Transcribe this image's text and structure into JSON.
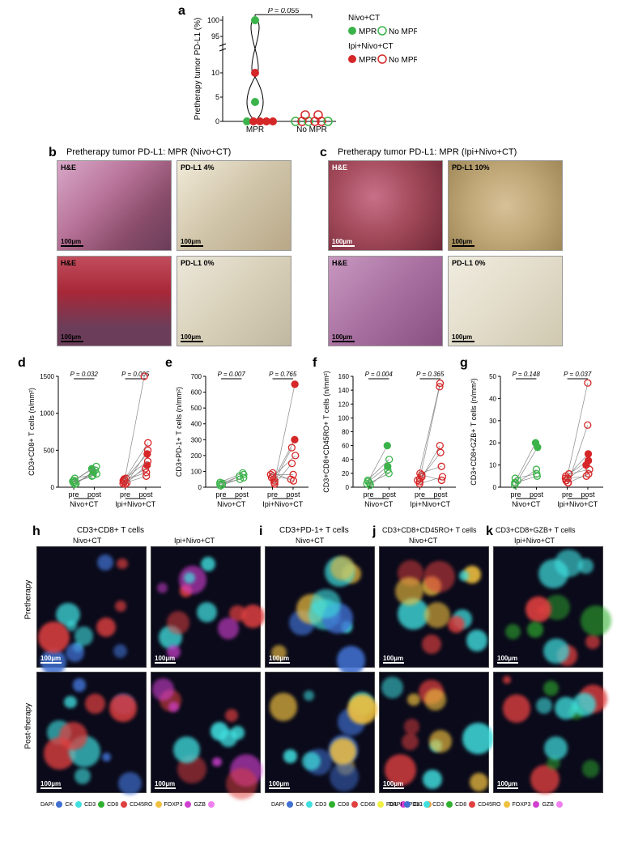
{
  "panel_a": {
    "label": "a",
    "type": "violin-scatter",
    "ylabel": "Pretherapy tumor PD-L1 (%)",
    "categories": [
      "MPR",
      "No MPR"
    ],
    "p_value": "P = 0.055",
    "legend": {
      "nivo": {
        "label": "Nivo+CT",
        "mpr": "MPR",
        "nompr": "No MPR",
        "color": "#3bb34a"
      },
      "ipi": {
        "label": "Ipi+Nivo+CT",
        "mpr": "MPR",
        "nompr": "No MPR",
        "color": "#d62728"
      }
    },
    "ylim": [
      0,
      100
    ],
    "yticks": [
      0,
      5,
      10,
      95,
      100
    ],
    "points_mpr": [
      {
        "y": 100,
        "fill": "#3bb34a",
        "stroke": "#3bb34a"
      },
      {
        "y": 10,
        "fill": "#d62728",
        "stroke": "#d62728"
      },
      {
        "y": 4,
        "fill": "#3bb34a",
        "stroke": "#3bb34a"
      },
      {
        "y": 0,
        "fill": "#3bb34a",
        "stroke": "#3bb34a"
      },
      {
        "y": 0,
        "fill": "#d62728",
        "stroke": "#d62728"
      },
      {
        "y": 0,
        "fill": "#d62728",
        "stroke": "#d62728"
      },
      {
        "y": 0,
        "fill": "#d62728",
        "stroke": "#d62728"
      },
      {
        "y": 0,
        "fill": "#d62728",
        "stroke": "#d62728"
      }
    ],
    "points_nompr": [
      {
        "y": 0,
        "fill": "none",
        "stroke": "#3bb34a"
      },
      {
        "y": 0,
        "fill": "none",
        "stroke": "#3bb34a"
      },
      {
        "y": 0,
        "fill": "none",
        "stroke": "#3bb34a"
      },
      {
        "y": 0,
        "fill": "none",
        "stroke": "#d62728"
      },
      {
        "y": 0,
        "fill": "none",
        "stroke": "#d62728"
      },
      {
        "y": 0,
        "fill": "none",
        "stroke": "#d62728"
      },
      {
        "y": 0,
        "fill": "none",
        "stroke": "#d62728"
      },
      {
        "y": 0,
        "fill": "none",
        "stroke": "#d62728"
      }
    ]
  },
  "panel_b": {
    "label": "b",
    "title": "Pretherapy tumor PD-L1: MPR (Nivo+CT)",
    "images": [
      {
        "label": "H&E",
        "bg": "linear-gradient(135deg,#d8a8c8,#b87399,#8a4d6a)"
      },
      {
        "label": "PD-L1 4%",
        "bg": "linear-gradient(135deg,#f0ead8,#e0d4b8,#c8bc98)"
      },
      {
        "label": "H&E",
        "bg": "linear-gradient(135deg,#c14d5d,#a82838,#6b3d5a)"
      },
      {
        "label": "PD-L1 0%",
        "bg": "linear-gradient(135deg,#ece7db,#dcd6c0,#c0b8a0)"
      }
    ],
    "scale": "100µm"
  },
  "panel_c": {
    "label": "c",
    "title": "Pretherapy tumor PD-L1: MPR (Ipi+Nivo+CT)",
    "images": [
      {
        "label": "H&E",
        "bg": "linear-gradient(135deg,#b05068,#903548,#6a2838)"
      },
      {
        "label": "PD-L1 10%",
        "bg": "linear-gradient(135deg,#e0d0b0,#c8b088,#a89068)"
      },
      {
        "label": "H&E",
        "bg": "linear-gradient(135deg,#c898c0,#a870a0,#885080)"
      },
      {
        "label": "PD-L1 0%",
        "bg": "linear-gradient(135deg,#f0ecdf,#e2dcca,#d0c8b0)"
      }
    ],
    "scale": "100µm"
  },
  "scatter_panels": {
    "colors": {
      "nivo": "#3bb34a",
      "ipi": "#d62728"
    },
    "x_labels": [
      "pre",
      "post",
      "pre",
      "post"
    ],
    "group_labels": [
      "Nivo+CT",
      "Ipi+Nivo+CT"
    ],
    "d": {
      "label": "d",
      "ylabel": "CD3+CD8+ T cells (n/mm²)",
      "ylim": [
        0,
        1500
      ],
      "yticks": [
        0,
        500,
        1000,
        1500
      ],
      "p_nivo": "P = 0.032",
      "p_ipi": "P = 0.005",
      "nivo_pairs": [
        [
          50,
          200
        ],
        [
          80,
          250
        ],
        [
          120,
          180
        ],
        [
          60,
          150
        ],
        [
          40,
          230
        ],
        [
          90,
          280
        ],
        [
          70,
          160
        ]
      ],
      "ipi_pairs": [
        [
          100,
          1500
        ],
        [
          80,
          600
        ],
        [
          60,
          500
        ],
        [
          120,
          450
        ],
        [
          40,
          300
        ],
        [
          70,
          250
        ],
        [
          90,
          200
        ],
        [
          50,
          150
        ],
        [
          110,
          350
        ]
      ],
      "mpr_nivo_post": [
        200,
        250
      ],
      "mpr_ipi_post": [
        450,
        300
      ]
    },
    "e": {
      "label": "e",
      "ylabel": "CD3+PD-1+ T cells (n/mm²)",
      "ylim": [
        0,
        700
      ],
      "yticks": [
        0,
        100,
        200,
        300,
        400,
        500,
        600,
        700
      ],
      "p_nivo": "P = 0.007",
      "p_ipi": "P = 0.765",
      "nivo_pairs": [
        [
          20,
          80
        ],
        [
          10,
          60
        ],
        [
          30,
          90
        ],
        [
          15,
          70
        ],
        [
          25,
          50
        ]
      ],
      "ipi_pairs": [
        [
          40,
          650
        ],
        [
          50,
          300
        ],
        [
          30,
          250
        ],
        [
          60,
          200
        ],
        [
          20,
          150
        ],
        [
          80,
          80
        ],
        [
          70,
          50
        ],
        [
          90,
          40
        ]
      ],
      "mpr_nivo_post": [],
      "mpr_ipi_post": [
        650,
        300
      ]
    },
    "f": {
      "label": "f",
      "ylabel": "CD3+CD8+CD45RO+ T cells (n/mm²)",
      "ylim": [
        0,
        160
      ],
      "yticks": [
        0,
        20,
        40,
        60,
        80,
        100,
        120,
        140,
        160
      ],
      "p_nivo": "P = 0.004",
      "p_ipi": "P = 0.365",
      "nivo_pairs": [
        [
          5,
          60
        ],
        [
          8,
          30
        ],
        [
          3,
          25
        ],
        [
          10,
          40
        ],
        [
          6,
          20
        ]
      ],
      "ipi_pairs": [
        [
          10,
          150
        ],
        [
          12,
          145
        ],
        [
          8,
          60
        ],
        [
          15,
          50
        ],
        [
          20,
          30
        ],
        [
          5,
          15
        ],
        [
          18,
          10
        ]
      ],
      "mpr_nivo_post": [
        60,
        30
      ],
      "mpr_ipi_post": []
    },
    "g": {
      "label": "g",
      "ylabel": "CD3+CD8+GZB+ T cells (n/mm²)",
      "ylim": [
        0,
        50
      ],
      "yticks": [
        0,
        10,
        20,
        30,
        40,
        50
      ],
      "p_nivo": "P = 0.148",
      "p_ipi": "P = 0.037",
      "nivo_pairs": [
        [
          2,
          20
        ],
        [
          3,
          18
        ],
        [
          1,
          8
        ],
        [
          4,
          6
        ],
        [
          2,
          5
        ]
      ],
      "ipi_pairs": [
        [
          3,
          47
        ],
        [
          2,
          28
        ],
        [
          4,
          15
        ],
        [
          5,
          12
        ],
        [
          3,
          10
        ],
        [
          6,
          8
        ],
        [
          2,
          6
        ],
        [
          4,
          5
        ]
      ],
      "mpr_nivo_post": [
        20,
        18
      ],
      "mpr_ipi_post": [
        15,
        12,
        10
      ]
    }
  },
  "fluor_panels": {
    "scale": "100µm",
    "row_labels": [
      "Pretherapy",
      "Post-therapy"
    ],
    "h": {
      "label": "h",
      "title": "CD3+CD8+ T cells",
      "sub": [
        "Nivo+CT",
        "Ipi+Nivo+CT"
      ]
    },
    "i": {
      "label": "i",
      "title": "CD3+PD-1+ T cells",
      "sub": [
        "Nivo+CT"
      ]
    },
    "j": {
      "label": "j",
      "title": "CD3+CD8+CD45RO+ T cells",
      "sub": [
        "Nivo+CT"
      ]
    },
    "k": {
      "label": "k",
      "title": "CD3+CD8+GZB+ T cells",
      "sub": [
        "Ipi+Nivo+CT"
      ]
    },
    "legend1": [
      {
        "label": "DAPI",
        "color": "#4070d0"
      },
      {
        "label": "CK",
        "color": "#40e0e0"
      },
      {
        "label": "CD3",
        "color": "#30b030"
      },
      {
        "label": "CD8",
        "color": "#e04040"
      },
      {
        "label": "CD45RO",
        "color": "#f0c040"
      },
      {
        "label": "FOXP3",
        "color": "#d040d0"
      },
      {
        "label": "GZB",
        "color": "#f080f0"
      }
    ],
    "legend2": [
      {
        "label": "DAPI",
        "color": "#4070d0"
      },
      {
        "label": "CK",
        "color": "#40e0e0"
      },
      {
        "label": "CD3",
        "color": "#30b030"
      },
      {
        "label": "CD8",
        "color": "#e04040"
      },
      {
        "label": "CD68",
        "color": "#f0f040"
      },
      {
        "label": "PD1",
        "color": "#d040d0"
      },
      {
        "label": "PDL1",
        "color": "#f0a040"
      }
    ]
  }
}
